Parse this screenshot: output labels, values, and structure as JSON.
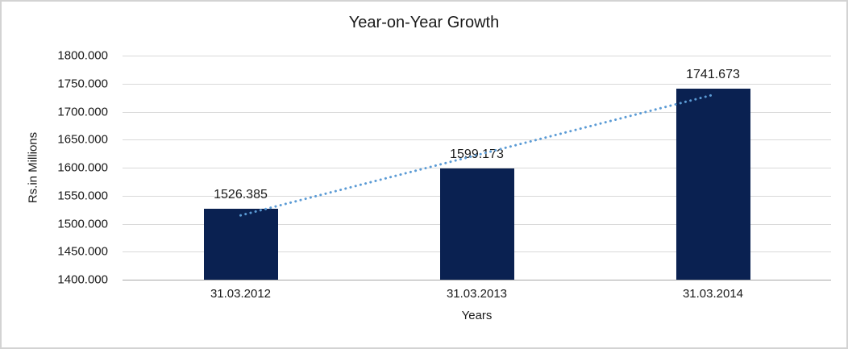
{
  "chart_data": {
    "type": "bar",
    "title": "Year-on-Year Growth",
    "xlabel": "Years",
    "ylabel": "Rs.in Millions",
    "categories": [
      "31.03.2012",
      "31.03.2013",
      "31.03.2014"
    ],
    "values": [
      1526.385,
      1599.173,
      1741.673
    ],
    "value_labels": [
      "1526.385",
      "1599.173",
      "1741.673"
    ],
    "ylim": [
      1400,
      1800
    ],
    "ytick_step": 50,
    "ytick_labels": [
      "1400.000",
      "1450.000",
      "1500.000",
      "1550.000",
      "1600.000",
      "1650.000",
      "1700.000",
      "1750.000",
      "1800.000"
    ],
    "grid": "horizontal",
    "legend": "none",
    "bar_color": "#0a2151",
    "trendline": {
      "type": "linear",
      "style": "dotted",
      "color": "#5b9bd5",
      "start": {
        "category_index": 0,
        "value": 1514.8
      },
      "end": {
        "category_index": 2,
        "value": 1730.0
      }
    },
    "colors": {
      "gridline": "#d9d9d9",
      "axis_line": "#a6a6a6",
      "text": "#1a1a1a",
      "frame_border": "#d3d3d3",
      "background": "#ffffff"
    }
  }
}
